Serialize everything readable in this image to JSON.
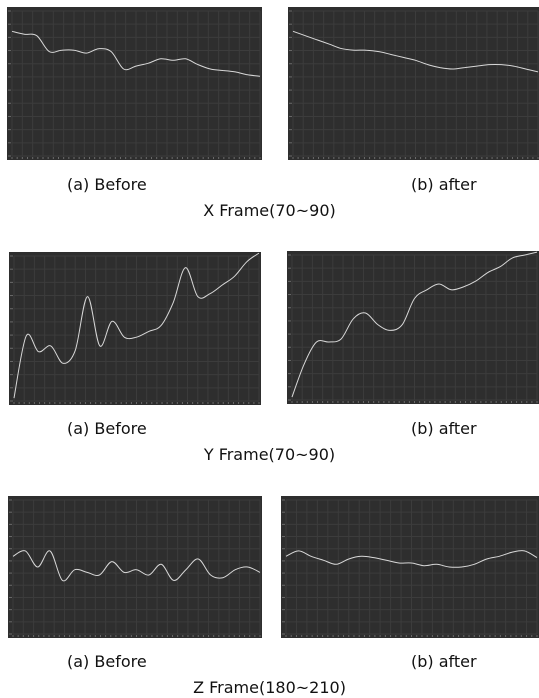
{
  "figures": [
    {
      "title": "X Frame(70~90)",
      "captions": [
        "(a)  Before",
        "(b)  after"
      ]
    },
    {
      "title": "Y Frame(70~90)",
      "captions": [
        "(a)  Before",
        "(b)  after"
      ]
    },
    {
      "title": "Z Frame(180~210)",
      "captions": [
        "(a)  Before",
        "(b)  after"
      ]
    }
  ],
  "colors": {
    "panel_bg": "#2e2e2e",
    "grid": "#3c3c3c",
    "curve": "#d8d8d8",
    "page": "#ffffff"
  },
  "chart_data": [
    {
      "type": "line",
      "title": "",
      "x": [
        0,
        5,
        10,
        15,
        20,
        25,
        30,
        35,
        40,
        45,
        50,
        55,
        60,
        65,
        70,
        75,
        80,
        85,
        90,
        95,
        100
      ],
      "series": [
        {
          "values": [
            86,
            84,
            83,
            72,
            73,
            73,
            71,
            74,
            72,
            60,
            62,
            64,
            67,
            66,
            67,
            63,
            60,
            59,
            58,
            56,
            55
          ]
        }
      ],
      "ylim": [
        0,
        100
      ],
      "grid": true
    },
    {
      "type": "line",
      "title": "",
      "x": [
        0,
        5,
        10,
        15,
        20,
        25,
        30,
        35,
        40,
        45,
        50,
        55,
        60,
        65,
        70,
        75,
        80,
        85,
        90,
        95,
        100
      ],
      "series": [
        {
          "values": [
            86,
            83,
            80,
            77,
            74,
            73,
            73,
            72,
            70,
            68,
            66,
            63,
            61,
            60,
            61,
            62,
            63,
            63,
            62,
            60,
            58
          ]
        }
      ],
      "ylim": [
        0,
        100
      ],
      "grid": true
    },
    {
      "type": "line",
      "title": "",
      "x": [
        0,
        5,
        10,
        15,
        20,
        25,
        30,
        35,
        40,
        45,
        50,
        55,
        60,
        65,
        70,
        75,
        80,
        85,
        90,
        95,
        100
      ],
      "series": [
        {
          "values": [
            2,
            45,
            34,
            38,
            26,
            35,
            72,
            38,
            55,
            44,
            44,
            48,
            52,
            68,
            92,
            72,
            74,
            80,
            86,
            96,
            102
          ]
        }
      ],
      "ylim": [
        0,
        100
      ],
      "grid": true
    },
    {
      "type": "line",
      "title": "",
      "x": [
        0,
        5,
        10,
        15,
        20,
        25,
        30,
        35,
        40,
        45,
        50,
        55,
        60,
        65,
        70,
        75,
        80,
        85,
        90,
        95,
        100
      ],
      "series": [
        {
          "values": [
            2,
            25,
            40,
            40,
            42,
            56,
            60,
            52,
            48,
            52,
            70,
            76,
            80,
            76,
            78,
            82,
            88,
            92,
            98,
            100,
            102
          ]
        }
      ],
      "ylim": [
        0,
        100
      ],
      "grid": true
    },
    {
      "type": "line",
      "title": "",
      "x": [
        0,
        5,
        10,
        15,
        20,
        25,
        30,
        35,
        40,
        45,
        50,
        55,
        60,
        65,
        70,
        75,
        80,
        85,
        90,
        95,
        100
      ],
      "series": [
        {
          "values": [
            58,
            62,
            50,
            62,
            40,
            48,
            46,
            44,
            54,
            46,
            48,
            44,
            52,
            40,
            48,
            56,
            44,
            42,
            48,
            50,
            46
          ]
        }
      ],
      "ylim": [
        0,
        100
      ],
      "grid": true
    },
    {
      "type": "line",
      "title": "",
      "x": [
        0,
        5,
        10,
        15,
        20,
        25,
        30,
        35,
        40,
        45,
        50,
        55,
        60,
        65,
        70,
        75,
        80,
        85,
        90,
        95,
        100
      ],
      "series": [
        {
          "values": [
            58,
            62,
            58,
            55,
            52,
            56,
            58,
            57,
            55,
            53,
            53,
            51,
            52,
            50,
            50,
            52,
            56,
            58,
            61,
            62,
            57
          ]
        }
      ],
      "ylim": [
        0,
        100
      ],
      "grid": true
    }
  ]
}
